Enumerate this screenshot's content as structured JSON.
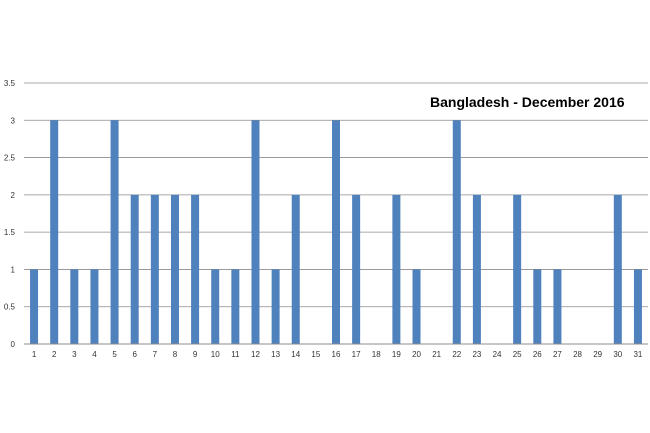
{
  "chart_data": {
    "type": "bar",
    "title": "Bangladesh - December 2016",
    "xlabel": "",
    "ylabel": "",
    "categories": [
      "1",
      "2",
      "3",
      "4",
      "5",
      "6",
      "7",
      "8",
      "9",
      "10",
      "11",
      "12",
      "13",
      "14",
      "15",
      "16",
      "17",
      "18",
      "19",
      "20",
      "21",
      "22",
      "23",
      "24",
      "25",
      "26",
      "27",
      "28",
      "29",
      "30",
      "31"
    ],
    "values": [
      1,
      3,
      1,
      1,
      3,
      2,
      2,
      2,
      2,
      1,
      1,
      3,
      1,
      2,
      0,
      3,
      2,
      0,
      2,
      1,
      0,
      3,
      2,
      0,
      2,
      1,
      1,
      0,
      0,
      2,
      1
    ],
    "ylim": [
      0,
      3.5
    ],
    "yticks": [
      0,
      0.5,
      1,
      1.5,
      2,
      2.5,
      3,
      3.5
    ],
    "ytick_labels": [
      "0",
      "0.5",
      "1",
      "1.5",
      "2",
      "2.5",
      "3",
      "3.5"
    ],
    "grid": true,
    "legend": "none",
    "colors": {
      "bar": "#4f81bd",
      "grid": "#8c8c8c",
      "axis": "#8c8c8c"
    }
  }
}
